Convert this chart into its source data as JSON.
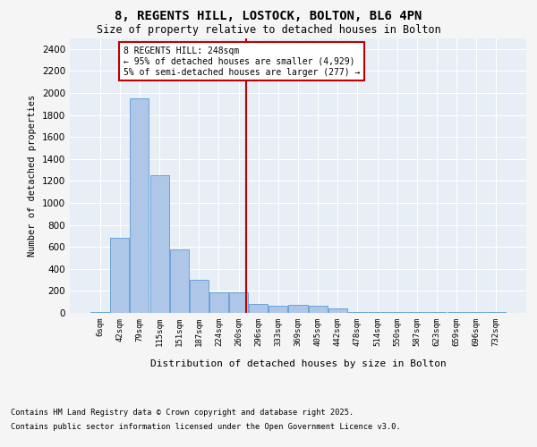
{
  "title1": "8, REGENTS HILL, LOSTOCK, BOLTON, BL6 4PN",
  "title2": "Size of property relative to detached houses in Bolton",
  "xlabel": "Distribution of detached houses by size in Bolton",
  "ylabel": "Number of detached properties",
  "bins": [
    "6sqm",
    "42sqm",
    "79sqm",
    "115sqm",
    "151sqm",
    "187sqm",
    "224sqm",
    "260sqm",
    "296sqm",
    "333sqm",
    "369sqm",
    "405sqm",
    "442sqm",
    "478sqm",
    "514sqm",
    "550sqm",
    "587sqm",
    "623sqm",
    "659sqm",
    "696sqm",
    "732sqm"
  ],
  "values": [
    5,
    680,
    1950,
    1250,
    575,
    300,
    190,
    190,
    85,
    65,
    70,
    65,
    40,
    5,
    5,
    5,
    5,
    5,
    5,
    5,
    5
  ],
  "bar_color": "#aec6e8",
  "bar_edge_color": "#5b9bd5",
  "vline_x": 7.4,
  "vline_color": "#c00000",
  "annotation_text": "8 REGENTS HILL: 248sqm\n← 95% of detached houses are smaller (4,929)\n5% of semi-detached houses are larger (277) →",
  "annotation_box_color": "#ffffff",
  "annotation_box_edge": "#c00000",
  "ylim": [
    0,
    2500
  ],
  "yticks": [
    0,
    200,
    400,
    600,
    800,
    1000,
    1200,
    1400,
    1600,
    1800,
    2000,
    2200,
    2400
  ],
  "background_color": "#e8eef5",
  "fig_background": "#f5f5f5",
  "footer1": "Contains HM Land Registry data © Crown copyright and database right 2025.",
  "footer2": "Contains public sector information licensed under the Open Government Licence v3.0."
}
